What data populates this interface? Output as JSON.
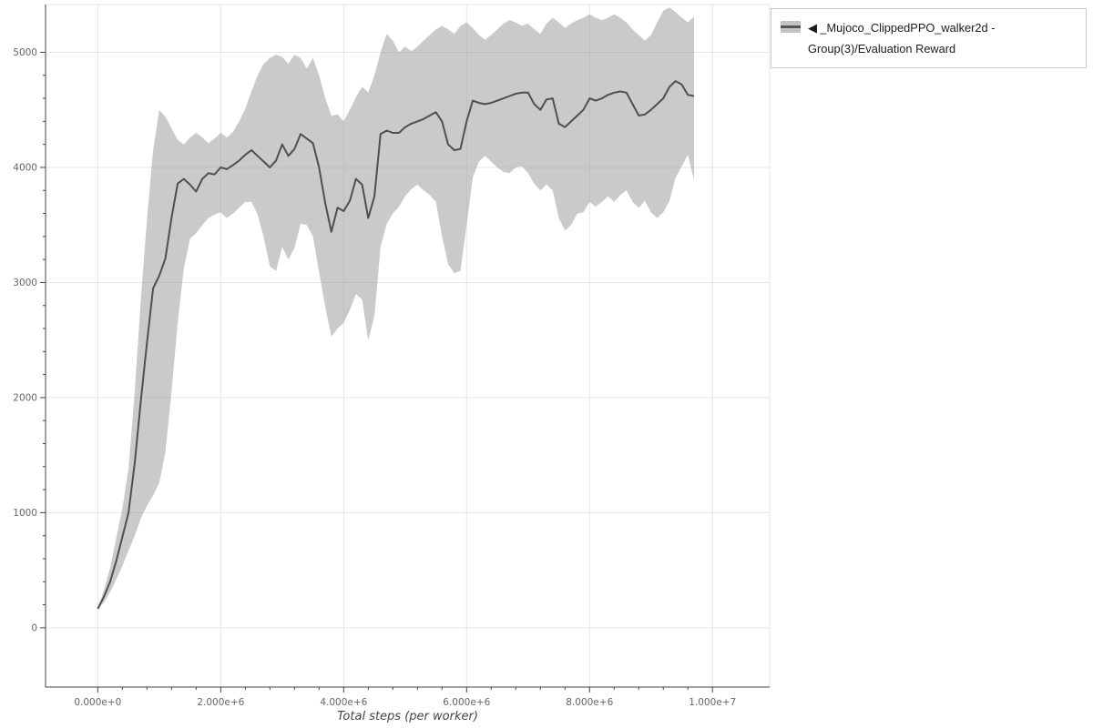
{
  "figure": {
    "x_axis_label": "Total steps (per worker)",
    "x_ticks": [
      {
        "v": 0,
        "label": "0.000e+0"
      },
      {
        "v": 2000000,
        "label": "2.000e+6"
      },
      {
        "v": 4000000,
        "label": "4.000e+6"
      },
      {
        "v": 6000000,
        "label": "6.000e+6"
      },
      {
        "v": 8000000,
        "label": "8.000e+6"
      },
      {
        "v": 10000000,
        "label": "1.000e+7"
      }
    ],
    "y_ticks": [
      {
        "v": 0,
        "label": "0"
      },
      {
        "v": 1000,
        "label": "1000"
      },
      {
        "v": 2000,
        "label": "2000"
      },
      {
        "v": 3000,
        "label": "3000"
      },
      {
        "v": 4000,
        "label": "4000"
      },
      {
        "v": 5000,
        "label": "5000"
      }
    ],
    "legend": {
      "label": "◀ _Mujoco_ClippedPPO_walker2d - Group(3)/Evaluation Reward"
    },
    "colors": {
      "line": "#4f4f4f",
      "band": "#9e9e9e",
      "grid": "#e6e6e6",
      "outline": "#e5e5e5",
      "axis": "#444444",
      "tick_text": "#666666",
      "legend_border": "#cccccc"
    }
  },
  "chart_data": {
    "type": "line",
    "title": "",
    "xlabel": "Total steps (per worker)",
    "ylabel": "",
    "grid": true,
    "legend_position": "top-right-outside",
    "x_scale": 1000000,
    "xlim": [
      -850000,
      10930000
    ],
    "ylim": [
      -515,
      5415
    ],
    "x": [
      0,
      0.1,
      0.2,
      0.3,
      0.4,
      0.5,
      0.6,
      0.7,
      0.8,
      0.9,
      1,
      1.1,
      1.2,
      1.3,
      1.4,
      1.5,
      1.6,
      1.7,
      1.8,
      1.9,
      2,
      2.1,
      2.2,
      2.3,
      2.4,
      2.5,
      2.6,
      2.7,
      2.8,
      2.9,
      3,
      3.1,
      3.2,
      3.3,
      3.4,
      3.5,
      3.6,
      3.7,
      3.8,
      3.9,
      4,
      4.1,
      4.2,
      4.3,
      4.4,
      4.5,
      4.6,
      4.7,
      4.8,
      4.9,
      5,
      5.1,
      5.2,
      5.3,
      5.4,
      5.5,
      5.6,
      5.7,
      5.8,
      5.9,
      6,
      6.1,
      6.2,
      6.3,
      6.4,
      6.5,
      6.6,
      6.7,
      6.8,
      6.9,
      7,
      7.1,
      7.2,
      7.3,
      7.4,
      7.5,
      7.6,
      7.7,
      7.8,
      7.9,
      8,
      8.1,
      8.2,
      8.3,
      8.4,
      8.5,
      8.6,
      8.7,
      8.8,
      8.9,
      9,
      9.1,
      9.2,
      9.3,
      9.4,
      9.5,
      9.6,
      9.7
    ],
    "series": [
      {
        "name": "◀ _Mujoco_ClippedPPO_walker2d - Group(3)/Evaluation Reward",
        "values": [
          165,
          270,
          400,
          580,
          790,
          1000,
          1430,
          1970,
          2480,
          2950,
          3060,
          3210,
          3560,
          3860,
          3900,
          3850,
          3790,
          3900,
          3950,
          3940,
          4000,
          3985,
          4020,
          4060,
          4110,
          4150,
          4100,
          4050,
          4000,
          4060,
          4200,
          4100,
          4160,
          4290,
          4250,
          4210,
          4000,
          3690,
          3440,
          3650,
          3620,
          3710,
          3900,
          3850,
          3560,
          3750,
          4290,
          4320,
          4300,
          4300,
          4350,
          4380,
          4400,
          4420,
          4450,
          4480,
          4400,
          4200,
          4150,
          4160,
          4400,
          4580,
          4560,
          4550,
          4560,
          4580,
          4600,
          4620,
          4640,
          4650,
          4650,
          4550,
          4500,
          4590,
          4600,
          4380,
          4350,
          4400,
          4450,
          4500,
          4600,
          4580,
          4600,
          4630,
          4650,
          4660,
          4650,
          4550,
          4450,
          4460,
          4500,
          4550,
          4600,
          4700,
          4750,
          4720,
          4630,
          4620
        ]
      }
    ],
    "band": {
      "lower": [
        165,
        220,
        310,
        420,
        540,
        670,
        800,
        950,
        1060,
        1150,
        1260,
        1530,
        2050,
        2650,
        3120,
        3380,
        3430,
        3500,
        3560,
        3590,
        3610,
        3560,
        3600,
        3650,
        3700,
        3700,
        3590,
        3390,
        3140,
        3100,
        3310,
        3200,
        3300,
        3510,
        3500,
        3400,
        3090,
        2790,
        2530,
        2600,
        2650,
        2760,
        2900,
        2850,
        2500,
        2710,
        3310,
        3510,
        3600,
        3660,
        3750,
        3810,
        3850,
        3800,
        3760,
        3700,
        3400,
        3160,
        3080,
        3100,
        3500,
        3910,
        4050,
        4100,
        4050,
        4000,
        3960,
        3950,
        4000,
        4010,
        3950,
        3860,
        3800,
        3850,
        3800,
        3560,
        3450,
        3500,
        3600,
        3610,
        3700,
        3660,
        3700,
        3750,
        3700,
        3760,
        3800,
        3700,
        3650,
        3710,
        3610,
        3560,
        3610,
        3710,
        3910,
        4010,
        4110,
        3890
      ],
      "upper": [
        165,
        330,
        520,
        780,
        1040,
        1380,
        2050,
        2850,
        3550,
        4150,
        4500,
        4440,
        4340,
        4240,
        4200,
        4260,
        4300,
        4260,
        4210,
        4250,
        4300,
        4260,
        4310,
        4400,
        4510,
        4660,
        4800,
        4900,
        4950,
        4980,
        4960,
        4900,
        4980,
        4950,
        4860,
        4950,
        4800,
        4600,
        4450,
        4460,
        4400,
        4500,
        4610,
        4700,
        4650,
        4800,
        5000,
        5160,
        5100,
        5000,
        5050,
        5010,
        5050,
        5100,
        5150,
        5200,
        5230,
        5200,
        5160,
        5230,
        5260,
        5210,
        5150,
        5110,
        5150,
        5200,
        5250,
        5280,
        5260,
        5230,
        5250,
        5200,
        5160,
        5250,
        5300,
        5260,
        5210,
        5250,
        5280,
        5300,
        5330,
        5300,
        5280,
        5300,
        5330,
        5300,
        5260,
        5200,
        5150,
        5100,
        5150,
        5260,
        5360,
        5390,
        5350,
        5300,
        5260,
        5310
      ]
    }
  }
}
